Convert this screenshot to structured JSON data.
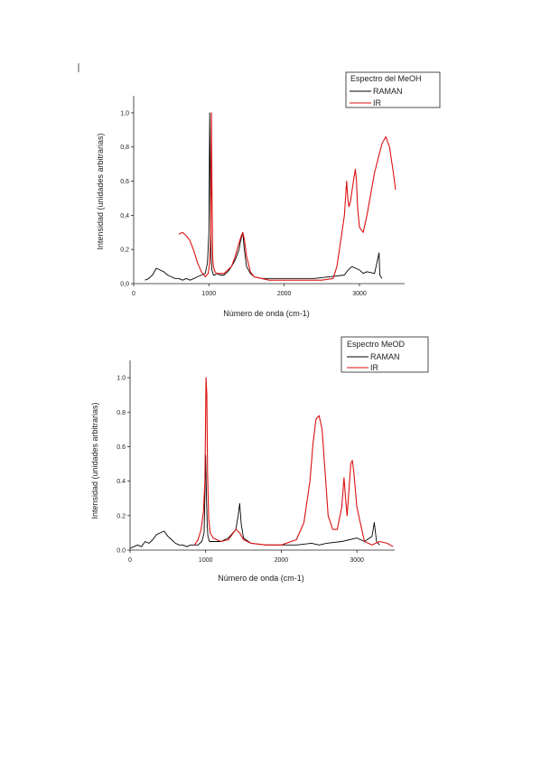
{
  "chart_data": [
    {
      "type": "line",
      "legend_title": "Espectro del MeOH",
      "legend_position": "top-right",
      "xlabel": "Número de onda (cm-1)",
      "ylabel": "Intensidad (unidades arbitrarias)",
      "xlim": [
        0,
        3600
      ],
      "ylim": [
        0,
        1.1
      ],
      "x_ticks": [
        0,
        1000,
        2000,
        3000
      ],
      "x_tick_labels": [
        "0",
        "1000",
        "2000",
        "3000"
      ],
      "y_ticks": [
        0,
        0.2,
        0.4,
        0.6,
        0.8,
        1.0
      ],
      "y_tick_labels": [
        "0,0",
        "0,2",
        "0,4",
        "0,6",
        "0,8",
        "1,0"
      ],
      "grid": false,
      "series": [
        {
          "name": "RAMAN",
          "color": "#000000",
          "x": [
            150,
            200,
            250,
            300,
            350,
            400,
            450,
            500,
            550,
            600,
            650,
            700,
            750,
            800,
            850,
            900,
            950,
            980,
            1000,
            1010,
            1020,
            1030,
            1040,
            1060,
            1080,
            1100,
            1150,
            1200,
            1250,
            1300,
            1350,
            1400,
            1420,
            1450,
            1470,
            1500,
            1550,
            1600,
            1700,
            1800,
            1900,
            2000,
            2200,
            2400,
            2600,
            2800,
            2850,
            2900,
            2950,
            3000,
            3050,
            3100,
            3200,
            3260,
            3270,
            3300
          ],
          "y": [
            0.02,
            0.03,
            0.05,
            0.09,
            0.08,
            0.07,
            0.05,
            0.04,
            0.03,
            0.03,
            0.02,
            0.03,
            0.02,
            0.03,
            0.04,
            0.05,
            0.06,
            0.12,
            0.3,
            1.0,
            0.5,
            0.15,
            0.08,
            0.05,
            0.05,
            0.06,
            0.05,
            0.05,
            0.07,
            0.1,
            0.14,
            0.2,
            0.25,
            0.3,
            0.2,
            0.1,
            0.06,
            0.04,
            0.03,
            0.03,
            0.03,
            0.03,
            0.03,
            0.03,
            0.04,
            0.05,
            0.08,
            0.1,
            0.09,
            0.08,
            0.06,
            0.07,
            0.06,
            0.18,
            0.05,
            0.03
          ]
        },
        {
          "name": "IR",
          "color": "#dd1111",
          "x": [
            600,
            650,
            700,
            750,
            800,
            850,
            900,
            950,
            990,
            1010,
            1025,
            1033,
            1040,
            1050,
            1060,
            1080,
            1100,
            1150,
            1200,
            1250,
            1300,
            1350,
            1400,
            1430,
            1450,
            1470,
            1500,
            1550,
            1600,
            1700,
            1800,
            2000,
            2200,
            2500,
            2650,
            2700,
            2750,
            2800,
            2830,
            2845,
            2860,
            2880,
            2920,
            2945,
            2960,
            2975,
            3000,
            3050,
            3100,
            3200,
            3300,
            3350,
            3400,
            3450,
            3480
          ],
          "y": [
            0.29,
            0.3,
            0.28,
            0.25,
            0.19,
            0.12,
            0.07,
            0.04,
            0.06,
            0.12,
            0.3,
            1.0,
            0.55,
            0.15,
            0.1,
            0.07,
            0.06,
            0.06,
            0.06,
            0.08,
            0.1,
            0.16,
            0.24,
            0.28,
            0.3,
            0.26,
            0.16,
            0.07,
            0.04,
            0.03,
            0.02,
            0.02,
            0.02,
            0.02,
            0.03,
            0.1,
            0.25,
            0.4,
            0.6,
            0.5,
            0.45,
            0.48,
            0.6,
            0.67,
            0.6,
            0.45,
            0.33,
            0.3,
            0.4,
            0.65,
            0.82,
            0.86,
            0.8,
            0.65,
            0.55
          ]
        }
      ]
    },
    {
      "type": "line",
      "legend_title": "Espectro MeOD",
      "legend_position": "top-right",
      "xlabel": "Número de onda (cm-1)",
      "ylabel": "Intensidad (unidades arbitrarias)",
      "xlim": [
        0,
        3500
      ],
      "ylim": [
        0,
        1.1
      ],
      "x_ticks": [
        0,
        1000,
        2000,
        3000
      ],
      "x_tick_labels": [
        "0",
        "1000",
        "2000",
        "3000"
      ],
      "y_ticks": [
        0,
        0.2,
        0.4,
        0.6,
        0.8,
        1.0
      ],
      "y_tick_labels": [
        "0.0",
        "0.2",
        "0.4",
        "0.6",
        "0.8",
        "1.0"
      ],
      "grid": false,
      "series": [
        {
          "name": "RAMAN",
          "color": "#000000",
          "x": [
            0,
            50,
            100,
            150,
            200,
            250,
            300,
            350,
            400,
            450,
            500,
            550,
            600,
            650,
            700,
            750,
            800,
            850,
            900,
            950,
            980,
            1000,
            1010,
            1020,
            1030,
            1050,
            1100,
            1200,
            1300,
            1400,
            1430,
            1450,
            1470,
            1500,
            1600,
            1800,
            2000,
            2200,
            2400,
            2500,
            2600,
            2800,
            3000,
            3100,
            3200,
            3230,
            3260,
            3300
          ],
          "y": [
            0.01,
            0.02,
            0.03,
            0.02,
            0.05,
            0.04,
            0.06,
            0.09,
            0.1,
            0.11,
            0.08,
            0.06,
            0.04,
            0.03,
            0.03,
            0.02,
            0.03,
            0.03,
            0.03,
            0.05,
            0.1,
            0.55,
            0.3,
            0.15,
            0.08,
            0.05,
            0.05,
            0.05,
            0.07,
            0.12,
            0.2,
            0.27,
            0.15,
            0.07,
            0.04,
            0.03,
            0.03,
            0.03,
            0.04,
            0.03,
            0.04,
            0.05,
            0.07,
            0.05,
            0.08,
            0.16,
            0.05,
            0.03
          ]
        },
        {
          "name": "IR",
          "color": "#dd1111",
          "x": [
            850,
            900,
            940,
            970,
            990,
            1005,
            1015,
            1025,
            1040,
            1060,
            1100,
            1200,
            1300,
            1400,
            1450,
            1500,
            1600,
            1800,
            2000,
            2200,
            2300,
            2380,
            2420,
            2460,
            2500,
            2540,
            2580,
            2620,
            2680,
            2740,
            2800,
            2830,
            2850,
            2870,
            2900,
            2920,
            2940,
            2960,
            3000,
            3100,
            3200,
            3300,
            3400,
            3480
          ],
          "y": [
            0.03,
            0.06,
            0.12,
            0.22,
            0.4,
            1.0,
            0.9,
            0.45,
            0.18,
            0.1,
            0.07,
            0.05,
            0.06,
            0.12,
            0.1,
            0.06,
            0.04,
            0.03,
            0.03,
            0.06,
            0.16,
            0.4,
            0.62,
            0.76,
            0.78,
            0.7,
            0.45,
            0.2,
            0.12,
            0.12,
            0.25,
            0.42,
            0.3,
            0.2,
            0.38,
            0.5,
            0.52,
            0.45,
            0.25,
            0.05,
            0.03,
            0.05,
            0.04,
            0.02
          ]
        }
      ]
    }
  ]
}
